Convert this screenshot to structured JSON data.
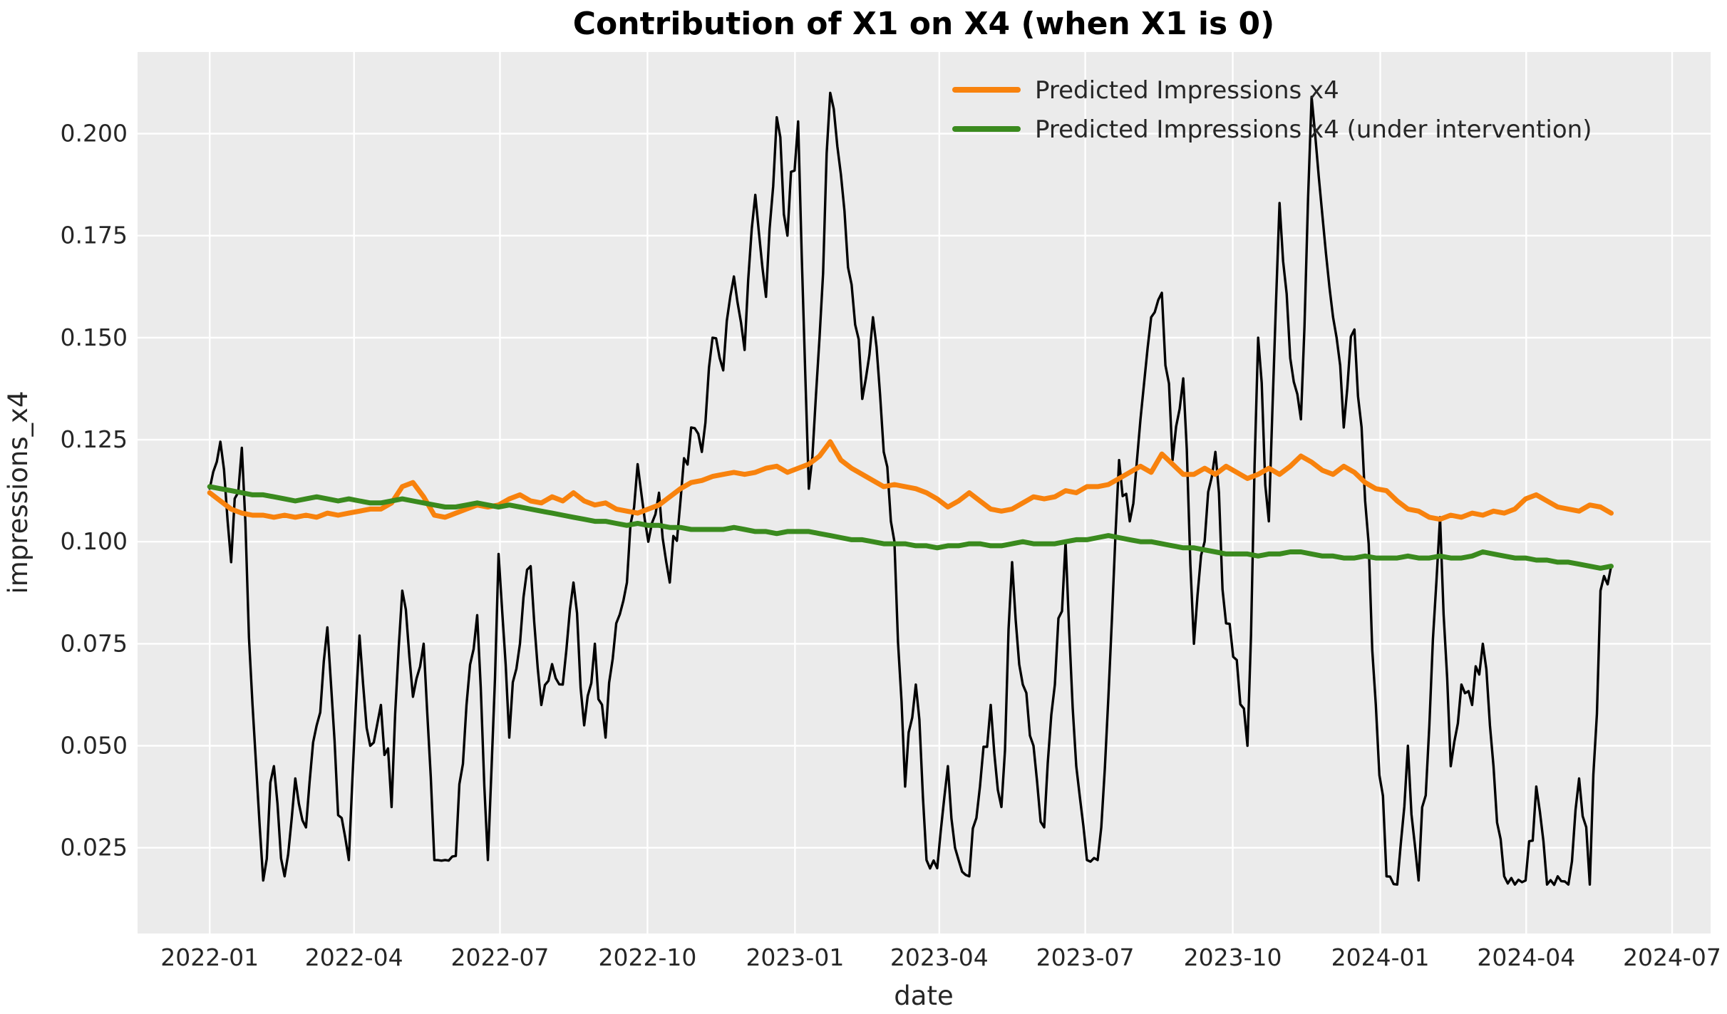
{
  "figure": {
    "title": "Contribution of X1 on X4 (when X1 is 0)",
    "xlabel": "date",
    "ylabel": "impressions_x4"
  },
  "colors": {
    "figure_bg": "#ffffff",
    "plot_bg": "#ebebeb",
    "grid": "#ffffff",
    "tick_text": "#262626",
    "title_text": "#000000",
    "actual_line": "#000000",
    "predicted_line": "#f8820d",
    "intervention_line": "#3a8a1e"
  },
  "legend": {
    "item1": "Predicted Impressions x4",
    "item2": "Predicted Impressions x4 (under intervention)"
  },
  "chart_data": {
    "type": "line",
    "title": "Contribution of X1 on X4 (when X1 is 0)",
    "xlabel": "date",
    "ylabel": "impressions_x4",
    "grid": true,
    "legend_position": "upper right",
    "xlim": [
      "2021-11-17",
      "2024-07-25"
    ],
    "ylim": [
      0.004,
      0.22
    ],
    "x_start": "2022-01-01",
    "x_end": "2024-05-24",
    "sampling": "approx weekly samples read from plot (132 points per series)",
    "yticks": [
      0.2,
      0.175,
      0.15,
      0.125,
      0.1,
      0.075,
      0.05,
      0.025
    ],
    "xticks": [
      {
        "label": "2022-01",
        "date": "2022-01-01"
      },
      {
        "label": "2022-04",
        "date": "2022-04-01"
      },
      {
        "label": "2022-07",
        "date": "2022-07-01"
      },
      {
        "label": "2022-10",
        "date": "2022-10-01"
      },
      {
        "label": "2023-01",
        "date": "2023-01-01"
      },
      {
        "label": "2023-04",
        "date": "2023-04-01"
      },
      {
        "label": "2023-07",
        "date": "2023-07-01"
      },
      {
        "label": "2023-10",
        "date": "2023-10-01"
      },
      {
        "label": "2024-01",
        "date": "2024-01-01"
      },
      {
        "label": "2024-04",
        "date": "2024-04-01"
      },
      {
        "label": "2024-07",
        "date": "2024-07-01"
      }
    ],
    "series": [
      {
        "name": "impressions_x4 (actual, not in legend)",
        "color": "#000000",
        "in_legend": false,
        "line_width": 3.4,
        "volatile": true,
        "values": [
          0.113,
          0.1245,
          0.095,
          0.123,
          0.06,
          0.017,
          0.045,
          0.018,
          0.042,
          0.03,
          0.055,
          0.079,
          0.033,
          0.022,
          0.077,
          0.05,
          0.06,
          0.035,
          0.088,
          0.062,
          0.075,
          0.022,
          0.022,
          0.023,
          0.06,
          0.082,
          0.022,
          0.097,
          0.052,
          0.075,
          0.094,
          0.06,
          0.07,
          0.065,
          0.09,
          0.055,
          0.075,
          0.052,
          0.08,
          0.09,
          0.119,
          0.1,
          0.112,
          0.09,
          0.11,
          0.128,
          0.122,
          0.15,
          0.142,
          0.165,
          0.147,
          0.185,
          0.16,
          0.204,
          0.175,
          0.203,
          0.113,
          0.15,
          0.21,
          0.19,
          0.163,
          0.135,
          0.155,
          0.122,
          0.1,
          0.04,
          0.065,
          0.022,
          0.02,
          0.045,
          0.022,
          0.018,
          0.04,
          0.06,
          0.035,
          0.095,
          0.065,
          0.05,
          0.03,
          0.065,
          0.1,
          0.045,
          0.022,
          0.022,
          0.062,
          0.12,
          0.105,
          0.13,
          0.155,
          0.161,
          0.12,
          0.14,
          0.075,
          0.1,
          0.122,
          0.08,
          0.071,
          0.05,
          0.15,
          0.105,
          0.183,
          0.145,
          0.13,
          0.209,
          0.18,
          0.155,
          0.128,
          0.152,
          0.11,
          0.06,
          0.018,
          0.016,
          0.05,
          0.017,
          0.055,
          0.106,
          0.045,
          0.065,
          0.06,
          0.075,
          0.045,
          0.018,
          0.016,
          0.017,
          0.04,
          0.016,
          0.018,
          0.016,
          0.042,
          0.016,
          0.088,
          0.094
        ]
      },
      {
        "name": "Predicted Impressions x4",
        "color": "#f8820d",
        "in_legend": true,
        "line_width": 7,
        "volatile": false,
        "values": [
          0.112,
          0.11,
          0.108,
          0.107,
          0.1065,
          0.1065,
          0.106,
          0.1065,
          0.106,
          0.1065,
          0.106,
          0.107,
          0.1065,
          0.107,
          0.1075,
          0.108,
          0.108,
          0.1095,
          0.1135,
          0.1145,
          0.111,
          0.1065,
          0.106,
          0.107,
          0.108,
          0.109,
          0.1085,
          0.109,
          0.1105,
          0.1115,
          0.11,
          0.1095,
          0.111,
          0.11,
          0.112,
          0.11,
          0.109,
          0.1095,
          0.108,
          0.1075,
          0.107,
          0.108,
          0.109,
          0.111,
          0.113,
          0.1145,
          0.115,
          0.116,
          0.1165,
          0.117,
          0.1165,
          0.117,
          0.118,
          0.1185,
          0.117,
          0.118,
          0.119,
          0.121,
          0.1245,
          0.12,
          0.118,
          0.1165,
          0.115,
          0.1135,
          0.114,
          0.1135,
          0.113,
          0.112,
          0.1105,
          0.1085,
          0.11,
          0.112,
          0.11,
          0.108,
          0.1075,
          0.108,
          0.1095,
          0.111,
          0.1105,
          0.111,
          0.1125,
          0.112,
          0.1135,
          0.1135,
          0.114,
          0.1155,
          0.117,
          0.1185,
          0.117,
          0.1215,
          0.119,
          0.1165,
          0.1165,
          0.118,
          0.1165,
          0.1185,
          0.117,
          0.1155,
          0.1165,
          0.118,
          0.1165,
          0.1185,
          0.121,
          0.1195,
          0.1175,
          0.1165,
          0.1185,
          0.117,
          0.1145,
          0.113,
          0.1125,
          0.11,
          0.108,
          0.1075,
          0.106,
          0.1055,
          0.1065,
          0.106,
          0.107,
          0.1065,
          0.1075,
          0.107,
          0.108,
          0.1105,
          0.1115,
          0.11,
          0.1085,
          0.108,
          0.1075,
          0.109,
          0.1085,
          0.107
        ]
      },
      {
        "name": "Predicted Impressions x4 (under intervention)",
        "color": "#3a8a1e",
        "in_legend": true,
        "line_width": 7,
        "volatile": false,
        "values": [
          0.1135,
          0.113,
          0.1125,
          0.112,
          0.1115,
          0.1115,
          0.111,
          0.1105,
          0.11,
          0.1105,
          0.111,
          0.1105,
          0.11,
          0.1105,
          0.11,
          0.1095,
          0.1095,
          0.11,
          0.1105,
          0.11,
          0.1095,
          0.109,
          0.1085,
          0.1085,
          0.109,
          0.1095,
          0.109,
          0.1085,
          0.109,
          0.1085,
          0.108,
          0.1075,
          0.107,
          0.1065,
          0.106,
          0.1055,
          0.105,
          0.105,
          0.1045,
          0.104,
          0.1045,
          0.104,
          0.104,
          0.1035,
          0.1035,
          0.103,
          0.103,
          0.103,
          0.103,
          0.1035,
          0.103,
          0.1025,
          0.1025,
          0.102,
          0.1025,
          0.1025,
          0.1025,
          0.102,
          0.1015,
          0.101,
          0.1005,
          0.1005,
          0.1,
          0.0995,
          0.0995,
          0.0995,
          0.099,
          0.099,
          0.0985,
          0.099,
          0.099,
          0.0995,
          0.0995,
          0.099,
          0.099,
          0.0995,
          0.1,
          0.0995,
          0.0995,
          0.0995,
          0.1,
          0.1005,
          0.1005,
          0.101,
          0.1015,
          0.101,
          0.1005,
          0.1,
          0.1,
          0.0995,
          0.099,
          0.0985,
          0.0985,
          0.098,
          0.0975,
          0.097,
          0.097,
          0.097,
          0.0965,
          0.097,
          0.097,
          0.0975,
          0.0975,
          0.097,
          0.0965,
          0.0965,
          0.096,
          0.096,
          0.0965,
          0.096,
          0.096,
          0.096,
          0.0965,
          0.096,
          0.096,
          0.0965,
          0.096,
          0.096,
          0.0965,
          0.0975,
          0.097,
          0.0965,
          0.096,
          0.096,
          0.0955,
          0.0955,
          0.095,
          0.095,
          0.0945,
          0.094,
          0.0935,
          0.094
        ]
      }
    ]
  }
}
